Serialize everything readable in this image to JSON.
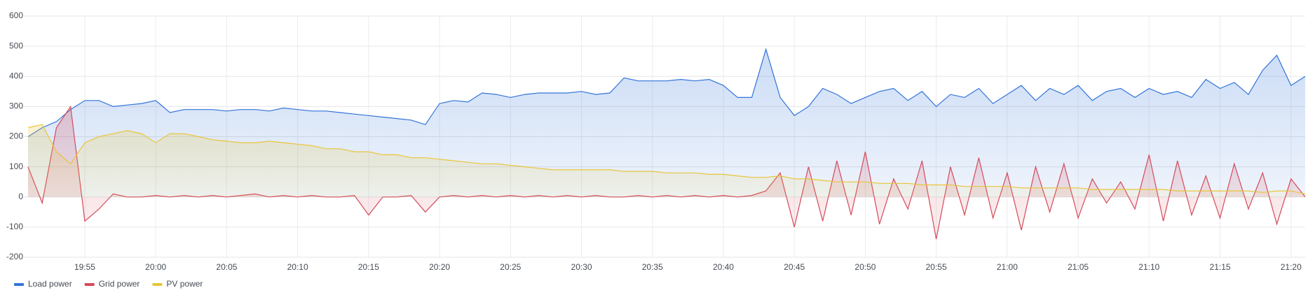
{
  "chart_data": {
    "type": "line",
    "x": [
      "19:51",
      "19:52",
      "19:53",
      "19:54",
      "19:55",
      "19:56",
      "19:57",
      "19:58",
      "19:59",
      "20:00",
      "20:01",
      "20:02",
      "20:03",
      "20:04",
      "20:05",
      "20:06",
      "20:07",
      "20:08",
      "20:09",
      "20:10",
      "20:11",
      "20:12",
      "20:13",
      "20:14",
      "20:15",
      "20:16",
      "20:17",
      "20:18",
      "20:19",
      "20:20",
      "20:21",
      "20:22",
      "20:23",
      "20:24",
      "20:25",
      "20:26",
      "20:27",
      "20:28",
      "20:29",
      "20:30",
      "20:31",
      "20:32",
      "20:33",
      "20:34",
      "20:35",
      "20:36",
      "20:37",
      "20:38",
      "20:39",
      "20:40",
      "20:41",
      "20:42",
      "20:43",
      "20:44",
      "20:45",
      "20:46",
      "20:47",
      "20:48",
      "20:49",
      "20:50",
      "20:51",
      "20:52",
      "20:53",
      "20:54",
      "20:55",
      "20:56",
      "20:57",
      "20:58",
      "20:59",
      "21:00",
      "21:01",
      "21:02",
      "21:03",
      "21:04",
      "21:05",
      "21:06",
      "21:07",
      "21:08",
      "21:09",
      "21:10",
      "21:11",
      "21:12",
      "21:13",
      "21:14",
      "21:15",
      "21:16",
      "21:17",
      "21:18",
      "21:19",
      "21:20",
      "21:21"
    ],
    "series": [
      {
        "name": "Load power",
        "color": "#3274d9",
        "values": [
          200,
          230,
          250,
          290,
          320,
          320,
          300,
          305,
          310,
          320,
          280,
          290,
          290,
          290,
          285,
          290,
          290,
          285,
          295,
          290,
          285,
          285,
          280,
          275,
          270,
          265,
          260,
          255,
          240,
          310,
          320,
          315,
          345,
          340,
          330,
          340,
          345,
          345,
          345,
          350,
          340,
          345,
          395,
          385,
          385,
          385,
          390,
          385,
          390,
          370,
          330,
          330,
          490,
          330,
          270,
          300,
          360,
          340,
          310,
          330,
          350,
          360,
          320,
          350,
          300,
          340,
          330,
          360,
          310,
          340,
          370,
          320,
          360,
          340,
          370,
          320,
          350,
          360,
          330,
          360,
          340,
          350,
          330,
          390,
          360,
          380,
          340,
          420,
          470,
          370,
          400
        ]
      },
      {
        "name": "Grid power",
        "color": "#d44a5a",
        "values": [
          100,
          -20,
          230,
          300,
          -80,
          -40,
          10,
          0,
          0,
          5,
          0,
          5,
          0,
          5,
          0,
          5,
          10,
          0,
          5,
          0,
          5,
          0,
          0,
          5,
          -60,
          0,
          0,
          5,
          -50,
          0,
          5,
          0,
          5,
          0,
          5,
          0,
          5,
          0,
          5,
          0,
          5,
          0,
          0,
          5,
          0,
          5,
          0,
          5,
          0,
          5,
          0,
          5,
          20,
          80,
          -100,
          100,
          -80,
          120,
          -60,
          150,
          -90,
          60,
          -40,
          120,
          -140,
          100,
          -60,
          130,
          -70,
          80,
          -110,
          100,
          -50,
          110,
          -70,
          60,
          -20,
          50,
          -40,
          140,
          -80,
          120,
          -60,
          70,
          -70,
          110,
          -40,
          80,
          -90,
          60,
          0
        ]
      },
      {
        "name": "PV power",
        "color": "#e8c53a",
        "values": [
          230,
          240,
          150,
          110,
          180,
          200,
          210,
          220,
          210,
          180,
          210,
          210,
          200,
          190,
          185,
          180,
          180,
          185,
          180,
          175,
          170,
          160,
          160,
          150,
          150,
          140,
          140,
          130,
          130,
          125,
          120,
          115,
          110,
          110,
          105,
          100,
          95,
          90,
          90,
          90,
          90,
          90,
          85,
          85,
          85,
          80,
          80,
          80,
          75,
          75,
          70,
          65,
          65,
          70,
          60,
          60,
          55,
          50,
          50,
          50,
          45,
          45,
          45,
          40,
          40,
          40,
          35,
          35,
          35,
          35,
          30,
          30,
          30,
          30,
          30,
          25,
          25,
          25,
          25,
          25,
          25,
          20,
          20,
          20,
          20,
          20,
          20,
          15,
          20,
          20,
          10
        ]
      }
    ],
    "xlim": [
      "19:51",
      "21:21"
    ],
    "xticks": [
      "19:55",
      "20:00",
      "20:05",
      "20:10",
      "20:15",
      "20:20",
      "20:25",
      "20:30",
      "20:35",
      "20:40",
      "20:45",
      "20:50",
      "20:55",
      "21:00",
      "21:05",
      "21:10",
      "21:15",
      "21:20"
    ],
    "ylim": [
      -200,
      600
    ],
    "yticks": [
      -200,
      -100,
      0,
      100,
      200,
      300,
      400,
      500,
      600
    ],
    "grid": true,
    "legend": "bottom-left"
  }
}
